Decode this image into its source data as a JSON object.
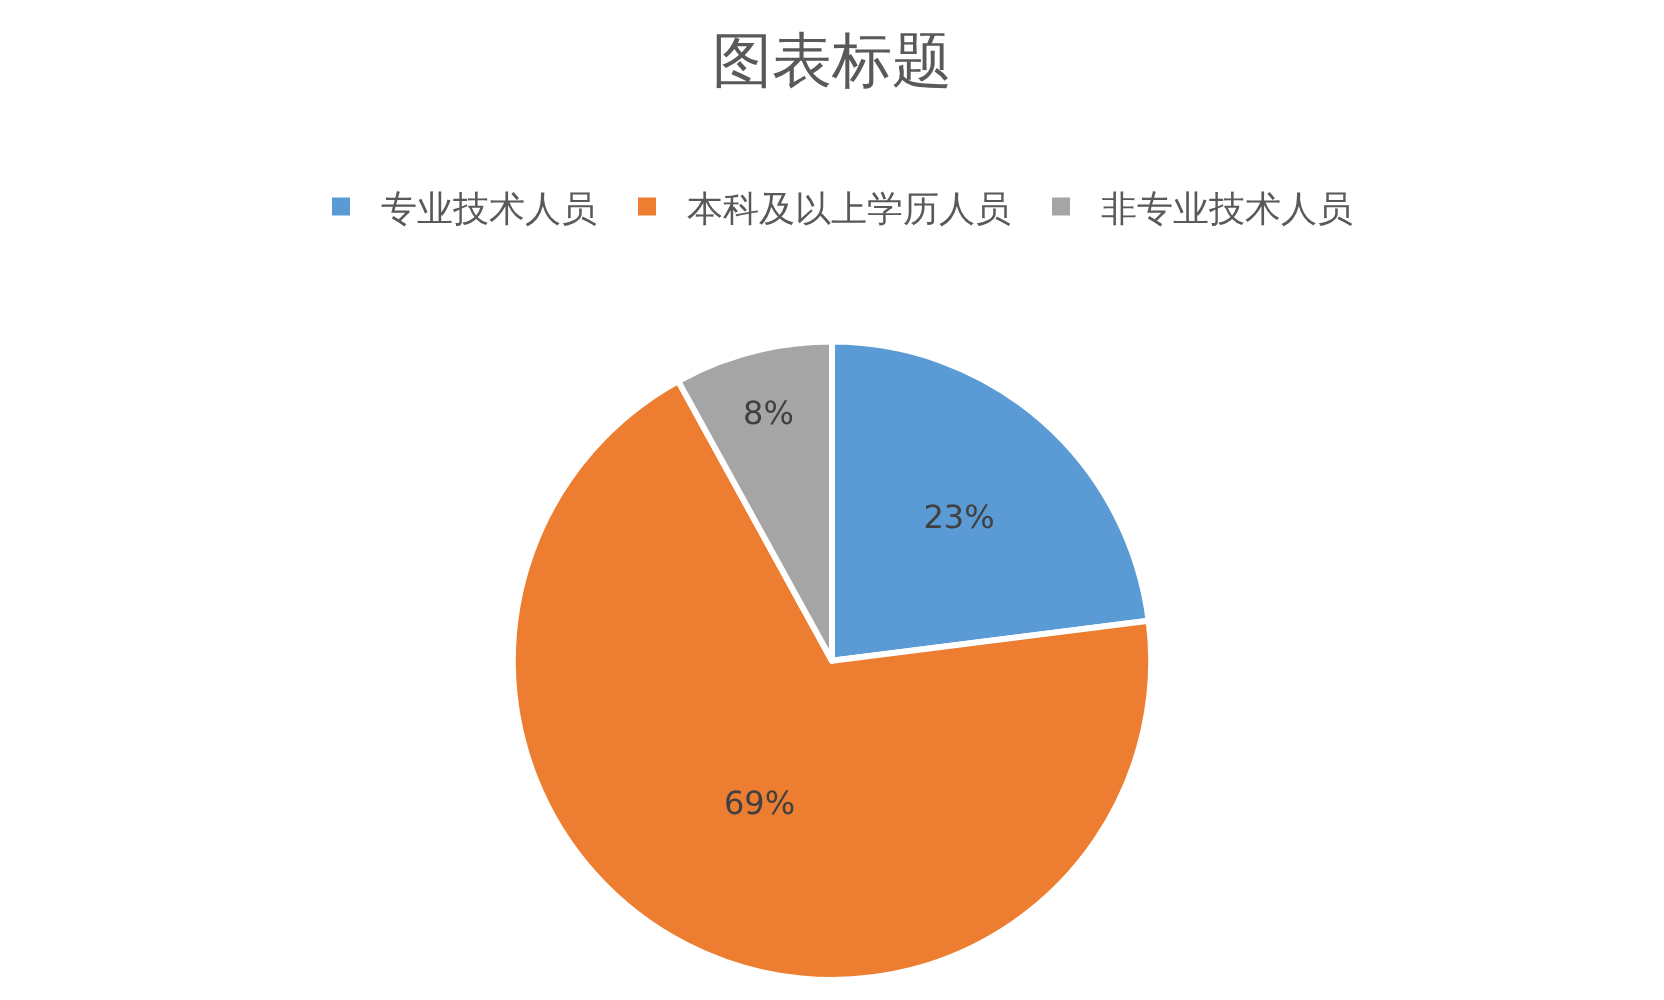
{
  "chart_data": {
    "type": "pie",
    "title": "图表标题",
    "categories": [
      "专业技术人员",
      "本科及以上学历人员",
      "非专业技术人员"
    ],
    "values": [
      23,
      69,
      8
    ],
    "colors": [
      "#5b9bd5",
      "#ed7d31",
      "#a5a5a5"
    ],
    "value_labels": [
      "23%",
      "69%",
      "8%"
    ],
    "legend": "top"
  }
}
